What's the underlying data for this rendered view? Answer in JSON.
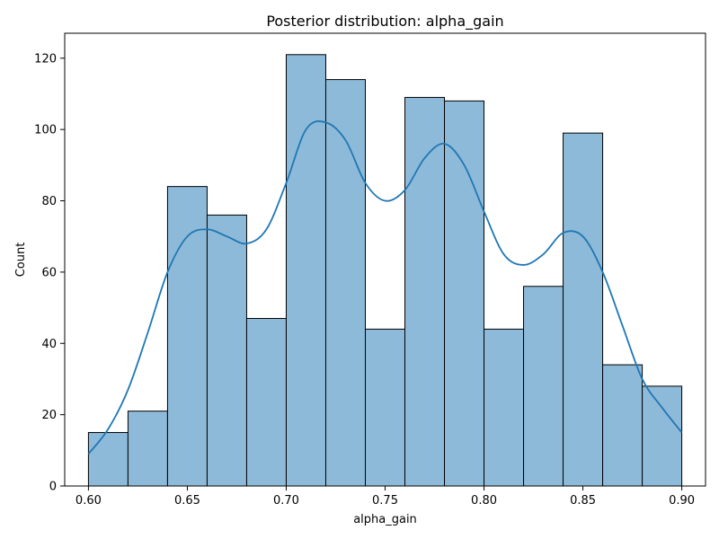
{
  "chart_data": {
    "type": "bar",
    "subtype": "histogram-with-kde",
    "title": "Posterior distribution: alpha_gain",
    "xlabel": "alpha_gain",
    "ylabel": "Count",
    "xlim": [
      0.588,
      0.912
    ],
    "ylim": [
      0,
      127
    ],
    "xticks": [
      0.6,
      0.65,
      0.7,
      0.75,
      0.8,
      0.85,
      0.9
    ],
    "xtick_labels": [
      "0.60",
      "0.65",
      "0.70",
      "0.75",
      "0.80",
      "0.85",
      "0.90"
    ],
    "yticks": [
      0,
      20,
      40,
      60,
      80,
      100,
      120
    ],
    "ytick_labels": [
      "0",
      "20",
      "40",
      "60",
      "80",
      "100",
      "120"
    ],
    "bin_edges": [
      0.6,
      0.62,
      0.64,
      0.66,
      0.68,
      0.7,
      0.72,
      0.74,
      0.76,
      0.78,
      0.8,
      0.82,
      0.84,
      0.86,
      0.88,
      0.9
    ],
    "counts": [
      15,
      21,
      84,
      76,
      47,
      121,
      114,
      44,
      109,
      108,
      44,
      56,
      99,
      34,
      28
    ],
    "kde": {
      "x": [
        0.6,
        0.61,
        0.62,
        0.63,
        0.64,
        0.65,
        0.66,
        0.67,
        0.68,
        0.69,
        0.7,
        0.71,
        0.72,
        0.73,
        0.74,
        0.75,
        0.76,
        0.77,
        0.78,
        0.79,
        0.8,
        0.81,
        0.82,
        0.83,
        0.84,
        0.85,
        0.86,
        0.87,
        0.88,
        0.89,
        0.9
      ],
      "y": [
        9,
        16,
        27,
        43,
        60,
        70,
        72,
        70,
        68,
        72,
        85,
        100,
        102,
        97,
        85,
        80,
        83,
        92,
        96,
        90,
        77,
        65,
        62,
        65,
        71,
        70,
        60,
        45,
        30,
        22,
        15
      ]
    },
    "grid": false,
    "legend": "none"
  },
  "colors": {
    "bar_fill": "#8ebad9",
    "bar_edge": "#000000",
    "kde_line": "#1f77b4",
    "axes": "#000000",
    "background": "#ffffff"
  }
}
